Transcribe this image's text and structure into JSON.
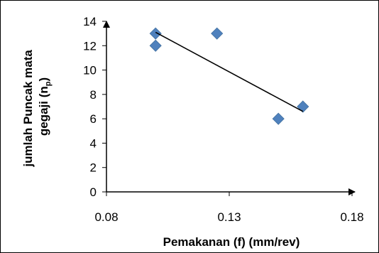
{
  "chart_data": {
    "type": "scatter",
    "xlabel": "Pemakanan (f) (mm/rev)",
    "ylabel": {
      "main": "jumlah Puncak mata",
      "second": "gegaji (n",
      "sub": "p",
      "close": ")"
    },
    "xlim": [
      0.08,
      0.18
    ],
    "ylim": [
      0,
      14
    ],
    "xticks": [
      "0.08",
      "0.13",
      "0.18"
    ],
    "yticks": [
      "0",
      "2",
      "4",
      "6",
      "8",
      "10",
      "12",
      "14"
    ],
    "grid": false,
    "legend": "none",
    "marker": "diamond",
    "marker_color": "#4f81bd",
    "trendline_color": "#000000",
    "series": [
      {
        "x": [
          0.1,
          0.1,
          0.125,
          0.15,
          0.16
        ],
        "y": [
          13,
          12,
          13,
          6,
          7
        ]
      }
    ],
    "trendline": {
      "type": "linear",
      "x": [
        0.1,
        0.16
      ],
      "y": [
        13.1,
        6.6
      ]
    }
  }
}
